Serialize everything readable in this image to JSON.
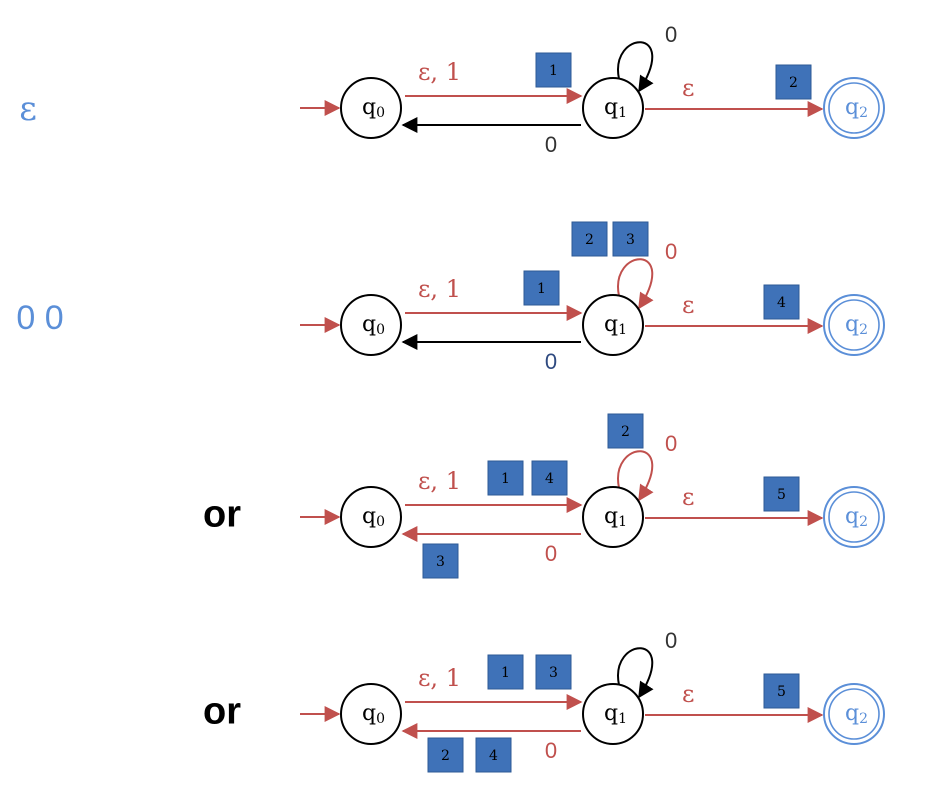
{
  "colors": {
    "red": "#C0504D",
    "black": "#000000",
    "blue_text": "#5B8FD8",
    "dark_blue": "#2F4A80",
    "box_fill": "#3F72B8",
    "box_stroke": "#2E5A96"
  },
  "state_labels": {
    "q": "q",
    "sub0": "0",
    "sub1": "1",
    "sub2": "2"
  },
  "rows": [
    {
      "left_text": "ε",
      "left_text_style": "blue-symbol",
      "top_edge_label": "ε, 1",
      "self_loop_label": "0",
      "self_loop_color": "black",
      "bottom_edge_label": "0",
      "bottom_edge_color": "black",
      "eps_label": "ε",
      "boxes": [
        "1",
        "2"
      ]
    },
    {
      "left_text": "0 0",
      "left_text_style": "blue-digits",
      "top_edge_label": "ε, 1",
      "self_loop_label": "0",
      "self_loop_color": "red",
      "bottom_edge_label": "0",
      "bottom_edge_color": "black",
      "eps_label": "ε",
      "boxes": [
        "2",
        "3",
        "1",
        "4"
      ]
    },
    {
      "left_text": "or",
      "left_text_style": "black-bold",
      "top_edge_label": "ε, 1",
      "self_loop_label": "0",
      "self_loop_color": "red",
      "bottom_edge_label": "0",
      "bottom_edge_color": "red",
      "eps_label": "ε",
      "boxes": [
        "2",
        "1",
        "4",
        "5",
        "3"
      ]
    },
    {
      "left_text": "or",
      "left_text_style": "black-bold",
      "top_edge_label": "ε, 1",
      "self_loop_label": "0",
      "self_loop_color": "black",
      "bottom_edge_label": "0",
      "bottom_edge_color": "red",
      "eps_label": "ε",
      "boxes": [
        "1",
        "3",
        "5",
        "2",
        "4"
      ]
    }
  ]
}
